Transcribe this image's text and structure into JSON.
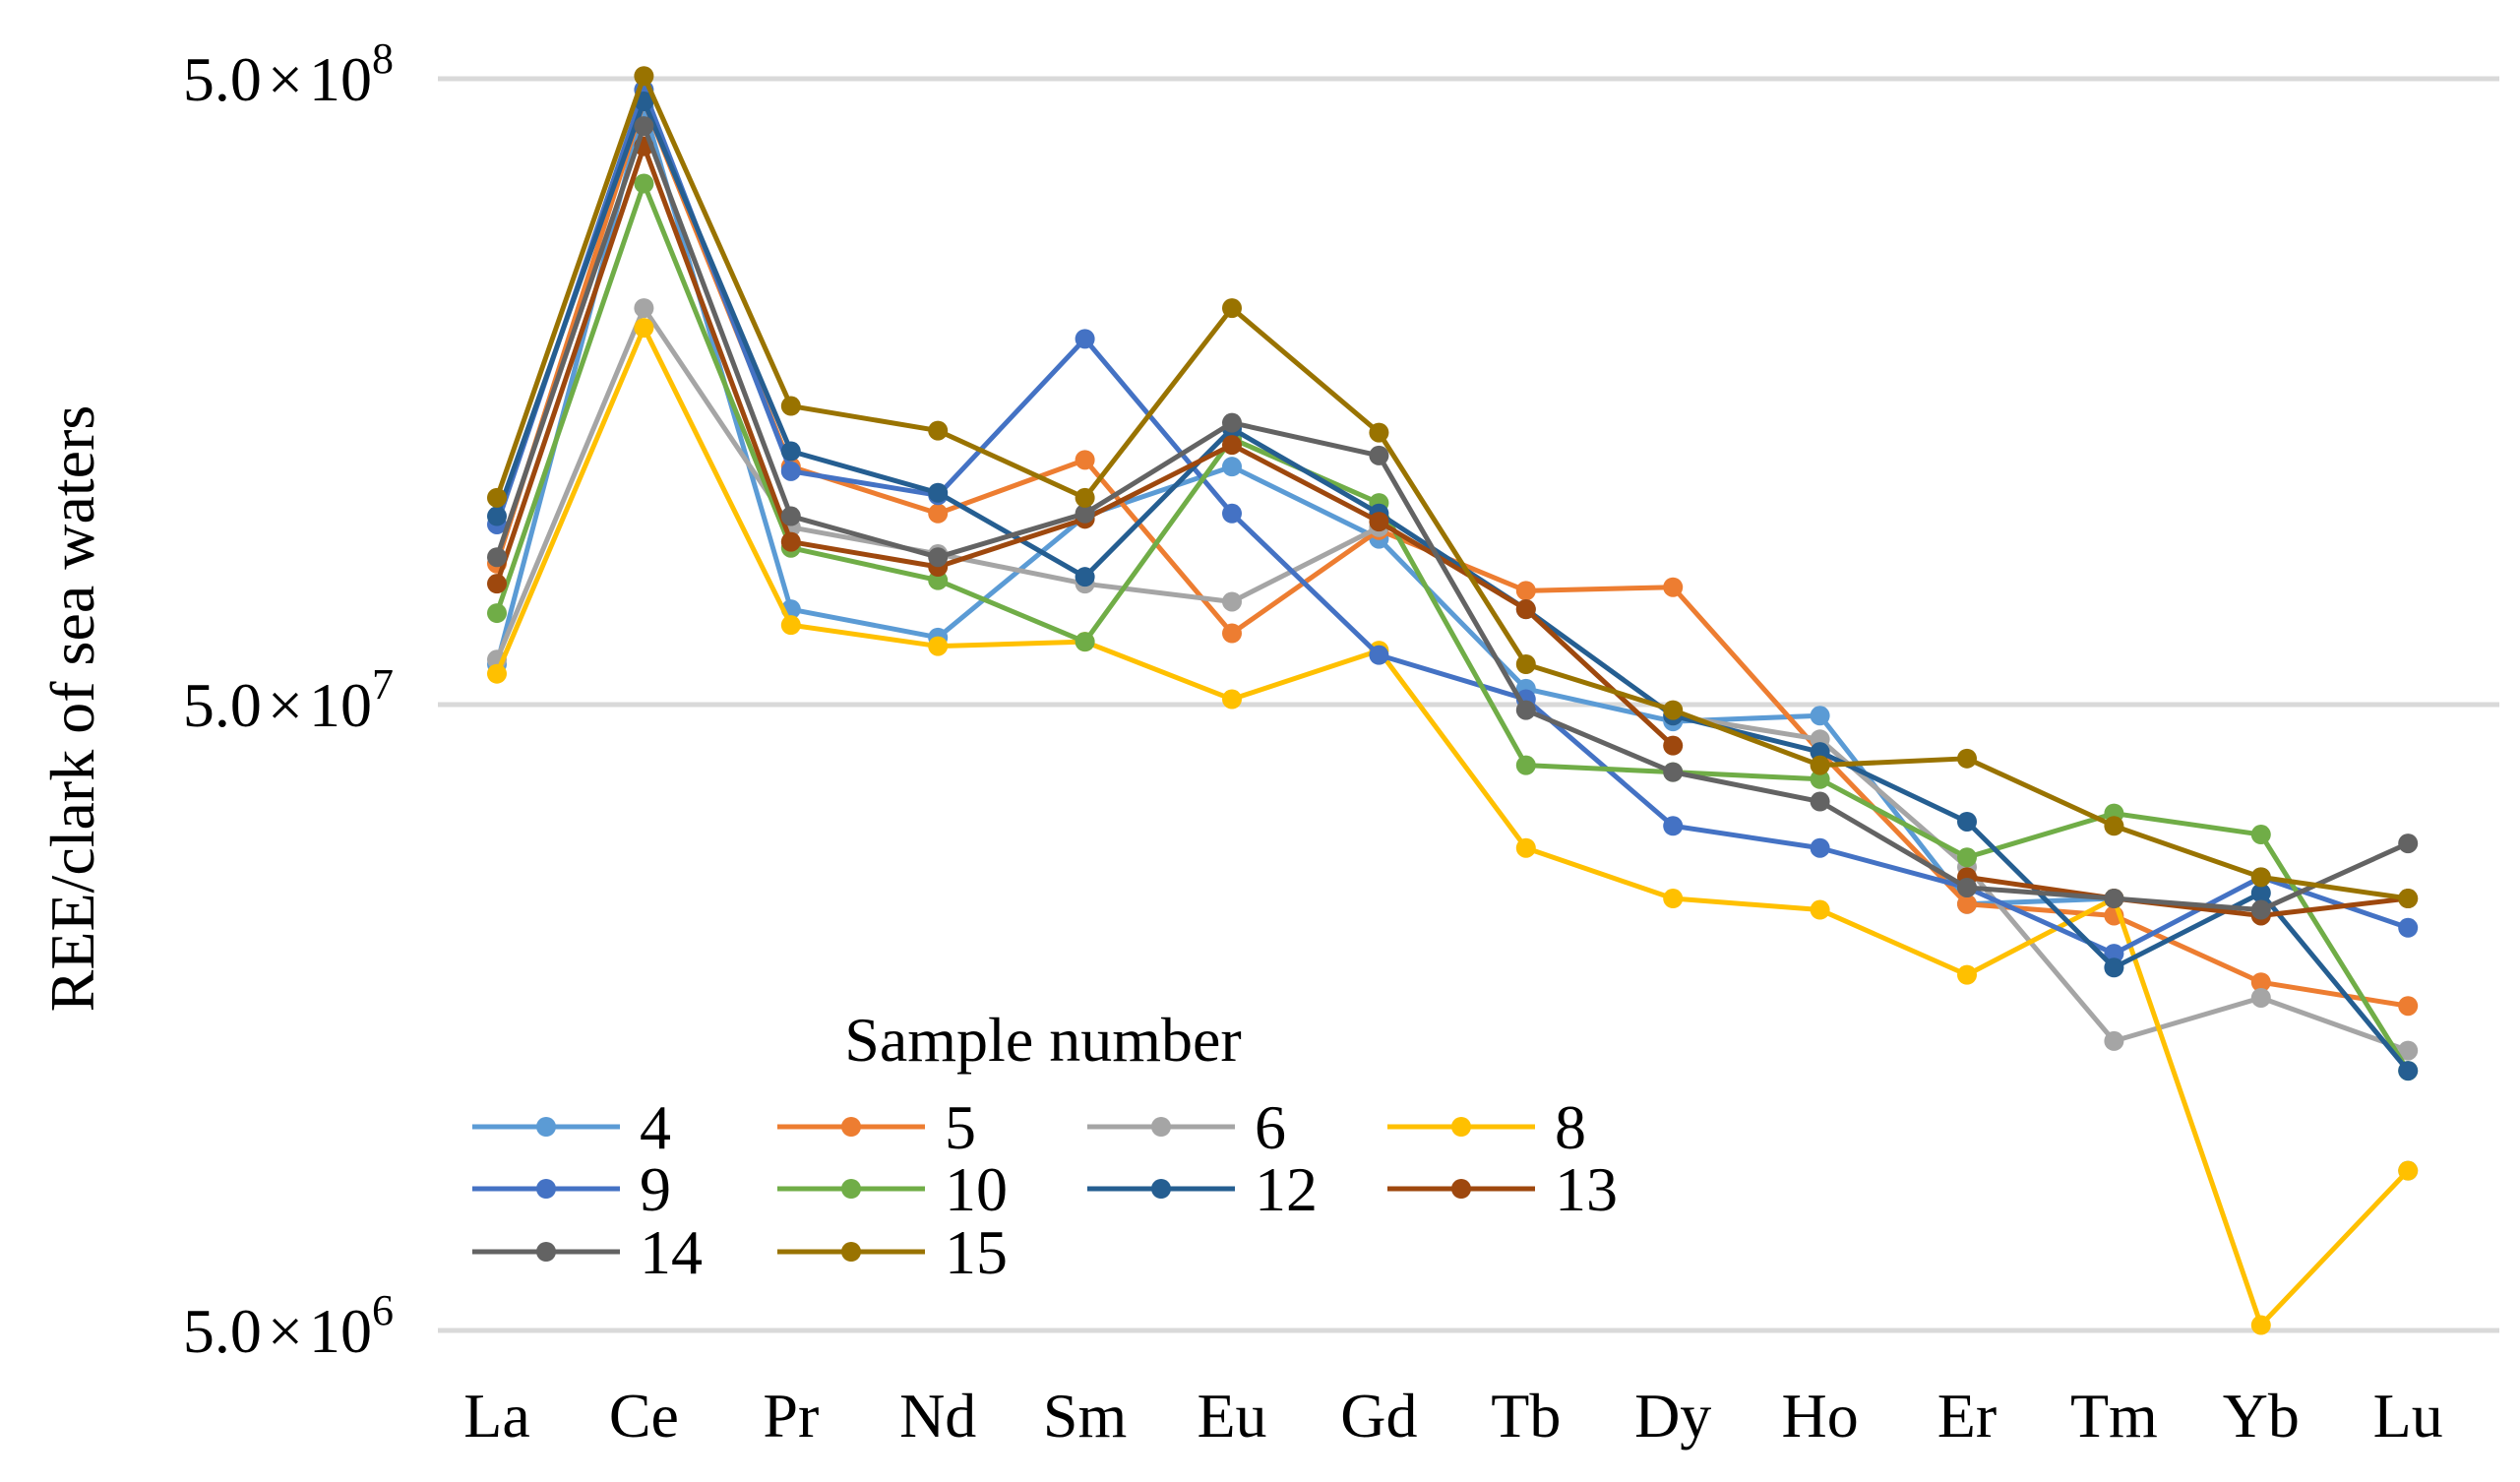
{
  "chart_data": {
    "type": "line",
    "yscale": "log",
    "ylabel": "REE/clark of sea waters",
    "xlabel": "",
    "ylim": [
      5000000,
      500000000
    ],
    "yticks": [
      {
        "value": 500000000,
        "mantissa": "5.0",
        "times": "×",
        "base": "10",
        "exp": "8"
      },
      {
        "value": 50000000,
        "mantissa": "5.0",
        "times": "×",
        "base": "10",
        "exp": "7"
      },
      {
        "value": 5000000,
        "mantissa": "5.0",
        "times": "×",
        "base": "10",
        "exp": "6"
      }
    ],
    "categories": [
      "La",
      "Ce",
      "Pr",
      "Nd",
      "Sm",
      "Eu",
      "Gd",
      "Tb",
      "Dy",
      "Ho",
      "Er",
      "Tm",
      "Yb",
      "Lu"
    ],
    "legend": {
      "title": "Sample number",
      "placement": "bottom-left"
    },
    "series": [
      {
        "name": "4",
        "color": "#5b9bd5",
        "values": [
          58000000,
          450000000,
          71000000,
          64000000,
          100000000,
          120000000,
          92000000,
          53000000,
          47000000,
          48000000,
          24000000,
          24500000,
          null,
          9000000
        ]
      },
      {
        "name": "5",
        "color": "#ed7d31",
        "values": [
          84000000,
          460000000,
          120000000,
          101000000,
          123000000,
          65000000,
          95000000,
          76000000,
          77000000,
          42000000,
          24000000,
          23000000,
          18000000,
          16500000
        ]
      },
      {
        "name": "6",
        "color": "#a5a5a5",
        "values": [
          59000000,
          215000000,
          96000000,
          87000000,
          78000000,
          73000000,
          96000000,
          null,
          48000000,
          44000000,
          27500000,
          14500000,
          17000000,
          14000000
        ]
      },
      {
        "name": "8",
        "color": "#ffc000",
        "values": [
          56000000,
          200000000,
          67000000,
          62000000,
          63000000,
          51000000,
          61000000,
          29500000,
          24500000,
          23500000,
          18500000,
          24500000,
          5100000,
          9000000
        ]
      },
      {
        "name": "9",
        "color": "#4472c4",
        "values": null
      },
      {
        "name": "10",
        "color": "#70ad47",
        "values": [
          70000000,
          340000000,
          89000000,
          79000000,
          63000000,
          133000000,
          105000000,
          40000000,
          39000000,
          38000000,
          28500000,
          33500000,
          31000000,
          13000000
        ]
      },
      {
        "name": "12",
        "color": "#255e91",
        "values": [
          100000000,
          460000000,
          127000000,
          109000000,
          80000000,
          138000000,
          101000000,
          71000000,
          48000000,
          42000000,
          32500000,
          19000000,
          25000000,
          13000000
        ]
      },
      {
        "name": "13",
        "color": "#9e480e",
        "values": [
          78000000,
          390000000,
          91000000,
          83000000,
          99000000,
          130000000,
          98000000,
          71000000,
          43000000,
          null,
          26500000,
          24500000,
          23000000,
          24500000
        ]
      },
      {
        "name": "14",
        "color": "#636363",
        "values": [
          86000000,
          420000000,
          100000000,
          86000000,
          101000000,
          141000000,
          125000000,
          49000000,
          39000000,
          35000000,
          25500000,
          24500000,
          23500000,
          30000000
        ]
      },
      {
        "name": "15",
        "color": "#997300",
        "values": [
          107000000,
          505000000,
          150000000,
          137000000,
          107000000,
          215000000,
          136000000,
          58000000,
          49000000,
          40000000,
          41000000,
          32000000,
          26500000,
          24500000
        ]
      }
    ],
    "series_9_values": [
      97000000,
      480000000,
      118000000,
      108000000,
      192000000,
      101000000,
      60000000,
      51000000,
      32000000,
      29500000,
      25500000,
      20000000,
      26500000,
      22000000
    ]
  }
}
